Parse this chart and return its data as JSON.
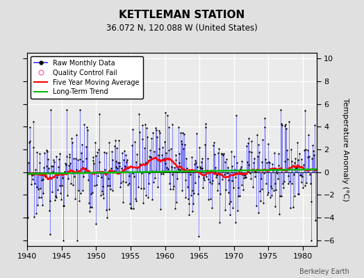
{
  "title": "KETTLEMAN STATION",
  "subtitle": "36.072 N, 120.088 W (United States)",
  "ylabel": "Temperature Anomaly (°C)",
  "xlim": [
    1940,
    1982
  ],
  "ylim": [
    -6.5,
    10.5
  ],
  "yticks": [
    -6,
    -4,
    -2,
    0,
    2,
    4,
    6,
    8,
    10
  ],
  "xticks": [
    1940,
    1945,
    1950,
    1955,
    1960,
    1965,
    1970,
    1975,
    1980
  ],
  "bg_color": "#e0e0e0",
  "plot_bg_color": "#ebebeb",
  "raw_color": "#4444ff",
  "ma_color": "#ff0000",
  "trend_color": "#00bb00",
  "qc_marker_color": "#ff69b4",
  "attribution": "Berkeley Earth",
  "seed": 17
}
